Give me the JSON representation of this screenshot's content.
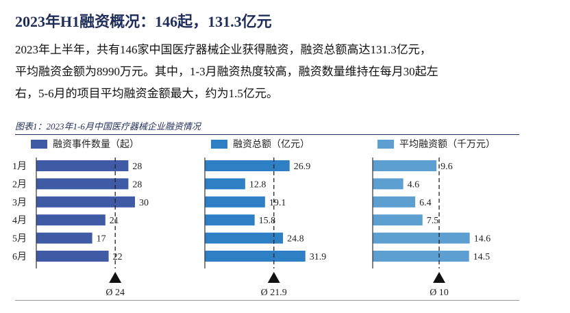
{
  "title": "2023年H1融资概况：146起，131.3亿元",
  "paragraph": [
    "2023年上半年，共有146家中国医疗器械企业获得融资，融资总额高达131.3亿元，",
    "平均融资金额为8990万元。其中，1-3月融资热度较高，融资数量维持在每月30起左",
    "右，5-6月的项目平均融资金额最大，约为1.5亿元。"
  ],
  "figure_caption": "图表1：2023年1-6月中国医疗器械企业融资情况",
  "chart_data": [
    {
      "type": "bar",
      "orientation": "horizontal",
      "categories": [
        "1月",
        "2月",
        "3月",
        "4月",
        "5月",
        "6月"
      ],
      "series": [
        {
          "name": "融资事件数量（起）",
          "values": [
            28,
            28,
            30,
            21,
            17,
            22
          ]
        }
      ],
      "value_labels": [
        "28",
        "28",
        "30",
        "21",
        "17",
        "22"
      ],
      "average": 24,
      "average_label": "Ø 24",
      "color": "#3f5ba5"
    },
    {
      "type": "bar",
      "orientation": "horizontal",
      "categories": [
        "1月",
        "2月",
        "3月",
        "4月",
        "5月",
        "6月"
      ],
      "series": [
        {
          "name": "融资总额（亿元）",
          "values": [
            26.9,
            12.8,
            19.1,
            15.8,
            24.8,
            31.9
          ]
        }
      ],
      "value_labels": [
        "26.9",
        "12.8",
        "19.1",
        "15.8",
        "24.8",
        "31.9"
      ],
      "average": 21.9,
      "average_label": "Ø 21.9",
      "color": "#2f7fc4"
    },
    {
      "type": "bar",
      "orientation": "horizontal",
      "categories": [
        "1月",
        "2月",
        "3月",
        "4月",
        "5月",
        "6月"
      ],
      "series": [
        {
          "name": "平均融资额（千万元）",
          "values": [
            9.6,
            4.6,
            6.4,
            7.5,
            14.6,
            14.5
          ]
        }
      ],
      "value_labels": [
        "9.6",
        "4.6",
        "6.4",
        "7.5",
        "14.6",
        "14.5"
      ],
      "average": 10,
      "average_label": "Ø 10",
      "color": "#5e9fd1"
    }
  ]
}
